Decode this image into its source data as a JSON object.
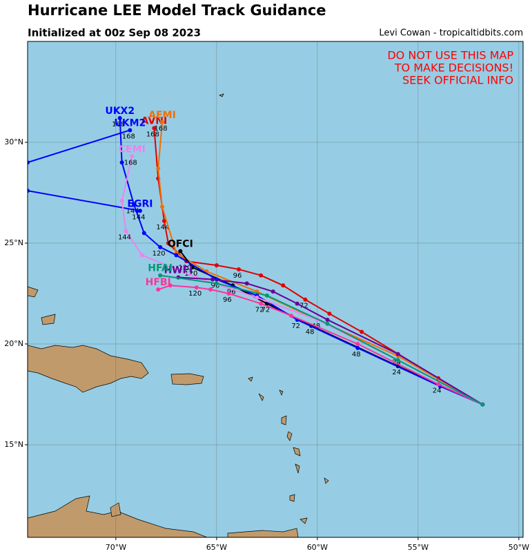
{
  "header": {
    "title": "Hurricane LEE Model Track Guidance",
    "subtitle": "Initialized at 00z Sep 08 2023",
    "credit": "Levi Cowan - tropicaltidbits.com"
  },
  "warning": [
    "DO NOT USE THIS MAP",
    "TO MAKE DECISIONS!",
    "SEEK OFFICIAL INFO"
  ],
  "map": {
    "lonlim": [
      -74.38,
      -49.79
    ],
    "latlim": [
      10.41,
      35.0
    ],
    "lonticks": [
      {
        "value": -70,
        "label": "70°W"
      },
      {
        "value": -65,
        "label": "65°W"
      },
      {
        "value": -60,
        "label": "60°W"
      },
      {
        "value": -55,
        "label": "55°W"
      },
      {
        "value": -50,
        "label": "50°W"
      }
    ],
    "latticks": [
      {
        "value": 15,
        "label": "15°N"
      },
      {
        "value": 20,
        "label": "20°N"
      },
      {
        "value": 25,
        "label": "25°N"
      },
      {
        "value": 30,
        "label": "30°N"
      }
    ],
    "grid": true
  },
  "tracks": [
    {
      "name": "AVNI",
      "color": "#e00000",
      "points": [
        {
          "lon": -51.8,
          "lat": 17.0
        },
        {
          "lon": -54.0,
          "lat": 18.3
        },
        {
          "lon": -57.8,
          "lat": 20.6
        },
        {
          "lon": -59.4,
          "lat": 21.5
        },
        {
          "lon": -60.6,
          "lat": 22.2,
          "hour": 72
        },
        {
          "lon": -61.7,
          "lat": 22.9
        },
        {
          "lon": -62.8,
          "lat": 23.4
        },
        {
          "lon": -63.9,
          "lat": 23.7,
          "hour": 96
        },
        {
          "lon": -65.0,
          "lat": 23.9
        },
        {
          "lon": -66.5,
          "lat": 24.1,
          "hour": 120
        },
        {
          "lon": -67.4,
          "lat": 25.0
        },
        {
          "lon": -67.6,
          "lat": 26.1,
          "hour": 144
        },
        {
          "lon": -67.9,
          "lat": 28.2
        },
        {
          "lon": -68.1,
          "lat": 30.7,
          "hour": 168
        }
      ]
    },
    {
      "name": "AEMI",
      "color": "#f07000",
      "points": [
        {
          "lon": -51.8,
          "lat": 17.0
        },
        {
          "lon": -56.0,
          "lat": 19.4,
          "hour": 24
        },
        {
          "lon": -60.0,
          "lat": 21.2,
          "hour": 48
        },
        {
          "lon": -63.0,
          "lat": 22.6
        },
        {
          "lon": -65.5,
          "lat": 23.6
        },
        {
          "lon": -67.0,
          "lat": 24.5
        },
        {
          "lon": -67.7,
          "lat": 26.8
        },
        {
          "lon": -67.9,
          "lat": 28.7
        },
        {
          "lon": -67.7,
          "lat": 31.0,
          "hour": 168
        }
      ]
    },
    {
      "name": "OFCI",
      "color": "#000000",
      "points": [
        {
          "lon": -51.8,
          "lat": 17.0
        },
        {
          "lon": -56.0,
          "lat": 18.9,
          "hour": 24
        },
        {
          "lon": -60.3,
          "lat": 20.9,
          "hour": 48
        },
        {
          "lon": -62.5,
          "lat": 22.0,
          "hour": 72
        },
        {
          "lon": -64.2,
          "lat": 22.9,
          "hour": 96
        },
        {
          "lon": -66.2,
          "lat": 23.8,
          "hour": 120
        },
        {
          "lon": -66.8,
          "lat": 24.6
        }
      ]
    },
    {
      "name": "UKX2",
      "color": "#0000ff",
      "points": [
        {
          "lon": -51.8,
          "lat": 17.0
        },
        {
          "lon": -53.9,
          "lat": 17.9
        },
        {
          "lon": -58.0,
          "lat": 19.8,
          "hour": 48
        },
        {
          "lon": -61.0,
          "lat": 21.2,
          "hour": 72
        },
        {
          "lon": -63.0,
          "lat": 22.4
        },
        {
          "lon": -65.0,
          "lat": 23.2,
          "hour": 96
        },
        {
          "lon": -67.0,
          "lat": 24.4
        },
        {
          "lon": -67.8,
          "lat": 24.8,
          "hour": 120
        },
        {
          "lon": -68.6,
          "lat": 25.5
        },
        {
          "lon": -69.1,
          "lat": 26.9,
          "hour": 144
        },
        {
          "lon": -69.7,
          "lat": 29.0
        },
        {
          "lon": -69.8,
          "lat": 31.2,
          "hour": 168
        }
      ]
    },
    {
      "name": "UKM2",
      "color": "#0000ff",
      "points": [
        {
          "lon": -74.38,
          "lat": 29.0
        },
        {
          "lon": -69.3,
          "lat": 30.6,
          "hour": 168
        }
      ]
    },
    {
      "name": "EGRI",
      "color": "#0000ff",
      "points": [
        {
          "lon": -74.38,
          "lat": 27.6
        },
        {
          "lon": -68.8,
          "lat": 26.6,
          "hour": 144
        }
      ]
    },
    {
      "name": "HFBI",
      "color": "#ff3399",
      "points": [
        {
          "lon": -51.8,
          "lat": 17.0
        },
        {
          "lon": -54.0,
          "lat": 18.0,
          "hour": 24
        },
        {
          "lon": -58.0,
          "lat": 20.0
        },
        {
          "lon": -61.3,
          "lat": 21.4
        },
        {
          "lon": -62.8,
          "lat": 22.0,
          "hour": 72
        },
        {
          "lon": -64.4,
          "lat": 22.5,
          "hour": 96
        },
        {
          "lon": -65.3,
          "lat": 22.7
        },
        {
          "lon": -66.0,
          "lat": 22.8,
          "hour": 120
        },
        {
          "lon": -67.3,
          "lat": 22.9
        },
        {
          "lon": -67.9,
          "lat": 22.7
        }
      ]
    },
    {
      "name": "CEMI",
      "color": "#ee82ee",
      "points": [
        {
          "lon": -51.8,
          "lat": 17.0
        },
        {
          "lon": -56.0,
          "lat": 19.2
        },
        {
          "lon": -60.0,
          "lat": 21.2
        },
        {
          "lon": -63.0,
          "lat": 22.3
        },
        {
          "lon": -66.0,
          "lat": 23.3
        },
        {
          "lon": -68.7,
          "lat": 24.4
        },
        {
          "lon": -69.5,
          "lat": 25.6,
          "hour": 144
        },
        {
          "lon": -69.7,
          "lat": 27.1
        },
        {
          "lon": -69.2,
          "lat": 29.3,
          "hour": 168
        }
      ]
    },
    {
      "name": "HWFI",
      "color": "#660099",
      "points": [
        {
          "lon": -51.8,
          "lat": 17.0
        },
        {
          "lon": -56.0,
          "lat": 19.5
        },
        {
          "lon": -59.5,
          "lat": 21.2
        },
        {
          "lon": -61.0,
          "lat": 22.0
        },
        {
          "lon": -62.2,
          "lat": 22.6
        },
        {
          "lon": -63.5,
          "lat": 23.0
        },
        {
          "lon": -65.2,
          "lat": 23.2
        },
        {
          "lon": -66.9,
          "lat": 23.3
        }
      ]
    },
    {
      "name": "HFAI",
      "color": "#009977",
      "points": [
        {
          "lon": -51.8,
          "lat": 17.0
        },
        {
          "lon": -56.0,
          "lat": 19.2
        },
        {
          "lon": -59.5,
          "lat": 21.0
        },
        {
          "lon": -62.5,
          "lat": 22.4
        },
        {
          "lon": -65.0,
          "lat": 23.0
        },
        {
          "lon": -67.8,
          "lat": 23.4
        }
      ]
    }
  ]
}
